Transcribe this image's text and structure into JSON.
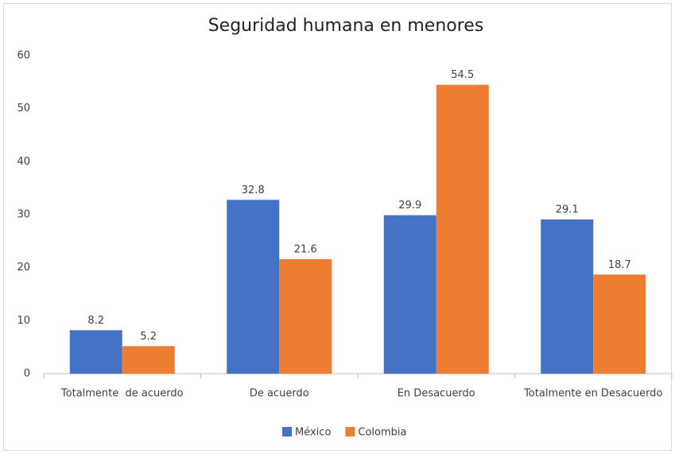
{
  "chart_data": {
    "type": "bar",
    "title": "Seguridad humana en menores",
    "categories": [
      "Totalmente  de acuerdo",
      "De acuerdo",
      "En Desacuerdo",
      "Totalmente en Desacuerdo"
    ],
    "series": [
      {
        "name": "México",
        "color": "#4472c4",
        "values": [
          8.2,
          32.8,
          29.9,
          29.1
        ]
      },
      {
        "name": "Colombia",
        "color": "#ed7d31",
        "values": [
          5.2,
          21.6,
          54.5,
          18.7
        ]
      }
    ],
    "ylim": [
      0,
      60
    ],
    "yticks": [
      0,
      10,
      20,
      30,
      40,
      50,
      60
    ],
    "grid": false,
    "legend": "bottom"
  }
}
